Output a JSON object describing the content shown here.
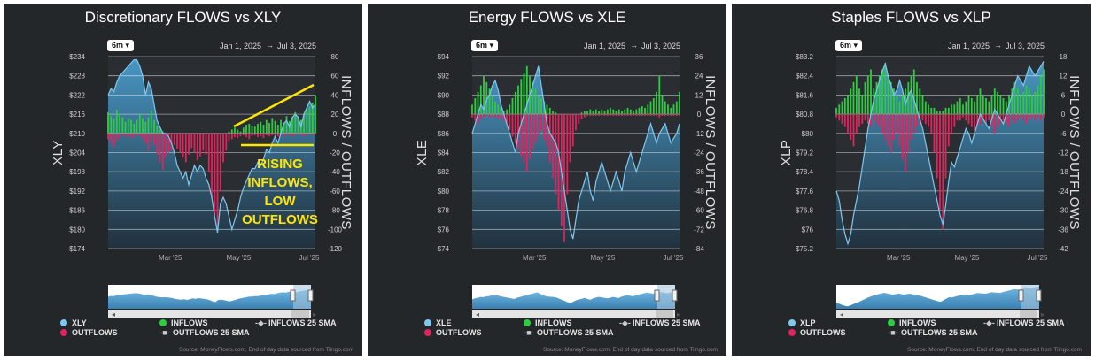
{
  "panels": [
    {
      "title": "Discretionary FLOWS vs XLY",
      "range_label": "6m",
      "date_start": "Jan 1, 2025",
      "date_sep": "→",
      "date_end": "Jul 3, 2025",
      "legend": {
        "price": "XLY",
        "inflows": "INFLOWS",
        "outflows": "OUTFLOWS",
        "inflows_sma": "INFLOWS 25 SMA",
        "outflows_sma": "OUTFLOWS 25 SMA"
      },
      "source": "Source: MoneyFlows.com, End of day data sourced from Tiingo.com"
    },
    {
      "title": "Energy FLOWS vs XLE",
      "range_label": "6m",
      "date_start": "Jan 1, 2025",
      "date_sep": "→",
      "date_end": "Jul 3, 2025",
      "legend": {
        "price": "XLE",
        "inflows": "INFLOWS",
        "outflows": "OUTFLOWS",
        "inflows_sma": "INFLOWS 25 SMA",
        "outflows_sma": "OUTFLOWS 25 SMA"
      },
      "source": "Source: MoneyFlows.com, End of day data sourced from Tiingo.com"
    },
    {
      "title": "Staples FLOWS vs XLP",
      "range_label": "6m",
      "date_start": "Jan 1, 2025",
      "date_sep": "→",
      "date_end": "Jul 3, 2025",
      "legend": {
        "price": "XLP",
        "inflows": "INFLOWS",
        "outflows": "OUTFLOWS",
        "inflows_sma": "INFLOWS 25 SMA",
        "outflows_sma": "OUTFLOWS 25 SMA"
      },
      "source": "Source: MoneyFlows.com, End of day data sourced from Tiingo.com"
    }
  ],
  "colors": {
    "price_line": "#7ec8f0",
    "price_fill": "#4a9ccc",
    "inflows": "#2ecc40",
    "outflows": "#e0245e",
    "grid": "#ffffff",
    "annotation": "#ffe600"
  },
  "chart_data": [
    {
      "type": "area",
      "title": "Discretionary FLOWS vs XLY",
      "ylabel": "XLY",
      "y2label": "INFLOWS / OUTFLOWS",
      "x_ticks": [
        "Mar '25",
        "May '25",
        "Jul '25"
      ],
      "y_ticks": [
        "$234",
        "$228",
        "$222",
        "$216",
        "$210",
        "$204",
        "$198",
        "$192",
        "$186",
        "$180",
        "$174"
      ],
      "y2_ticks": [
        "80",
        "60",
        "40",
        "20",
        "0",
        "-20",
        "-40",
        "-60",
        "-80",
        "-100",
        "-120"
      ],
      "ylim": [
        174,
        234
      ],
      "y2lim": [
        -120,
        80
      ],
      "price": [
        222,
        224,
        223,
        226,
        228,
        229,
        230,
        231,
        232,
        233,
        233,
        231,
        228,
        222,
        226,
        224,
        219,
        214,
        212,
        210,
        210,
        209,
        207,
        204,
        200,
        198,
        196,
        198,
        194,
        197,
        200,
        198,
        200,
        199,
        196,
        194,
        190,
        184,
        179,
        188,
        190,
        188,
        184,
        180,
        183,
        186,
        190,
        193,
        195,
        197,
        199,
        199,
        201,
        200,
        202,
        205,
        204,
        207,
        209,
        207,
        210,
        213,
        214,
        212,
        215,
        216,
        215,
        212,
        216,
        218,
        220,
        218,
        219
      ],
      "inflows": [
        22,
        18,
        15,
        25,
        20,
        17,
        12,
        16,
        14,
        10,
        14,
        20,
        16,
        12,
        17,
        24,
        14,
        8,
        4,
        2,
        0,
        0,
        0,
        0,
        0,
        0,
        0,
        0,
        0,
        0,
        0,
        0,
        0,
        0,
        0,
        0,
        0,
        0,
        0,
        0,
        0,
        0,
        2,
        4,
        6,
        4,
        2,
        6,
        9,
        10,
        8,
        7,
        10,
        12,
        9,
        14,
        11,
        16,
        13,
        9,
        14,
        11,
        18,
        13,
        16,
        22,
        18,
        14,
        20,
        24,
        28,
        32,
        40
      ],
      "outflows": [
        -6,
        -10,
        -14,
        -8,
        -5,
        -2,
        -4,
        -3,
        -5,
        -4,
        -2,
        -3,
        -6,
        -10,
        -18,
        -8,
        -12,
        -22,
        -30,
        -38,
        -25,
        -20,
        -18,
        -12,
        -16,
        -20,
        -25,
        -30,
        -22,
        -15,
        -20,
        -28,
        -24,
        -18,
        -22,
        -40,
        -68,
        -85,
        -98,
        -60,
        -30,
        -18,
        -8,
        -6,
        -4,
        -5,
        -3,
        -2,
        -4,
        -6,
        -3,
        -2,
        -4,
        -3,
        -5,
        -2,
        -3,
        -2,
        -4,
        -3,
        -2,
        -3,
        -2,
        -2,
        -3,
        -2,
        -1,
        -2,
        -3,
        -2,
        -1,
        -2,
        -1
      ],
      "annotations": [
        "RISING",
        "INFLOWS,",
        "LOW",
        "OUTFLOWS"
      ]
    },
    {
      "type": "area",
      "title": "Energy FLOWS vs XLE",
      "ylabel": "XLE",
      "y2label": "INFLOWS / OUTFLOWS",
      "x_ticks": [
        "Mar '25",
        "May '25",
        "Jul '25"
      ],
      "y_ticks": [
        "$94",
        "$92",
        "$90",
        "$88",
        "$86",
        "$84",
        "$82",
        "$80",
        "$78",
        "$76",
        "$74"
      ],
      "y2_ticks": [
        "36",
        "24",
        "12",
        "0",
        "-12",
        "-24",
        "-36",
        "-48",
        "-60",
        "-72",
        "-84"
      ],
      "ylim": [
        74,
        94
      ],
      "y2lim": [
        -84,
        36
      ],
      "price": [
        86,
        87,
        88,
        89,
        88.5,
        89.5,
        90,
        91,
        91.5,
        90.5,
        89,
        88,
        87,
        86,
        85,
        84,
        86,
        87,
        88,
        89,
        90,
        91,
        92,
        93,
        91,
        89,
        87,
        86,
        85.5,
        85,
        84,
        82,
        80,
        78,
        76,
        75,
        77,
        79,
        80,
        81,
        82,
        80,
        79,
        81,
        82,
        83,
        82,
        81,
        80,
        81,
        82,
        81,
        80,
        82,
        83,
        84,
        83,
        82,
        83,
        84,
        85,
        86,
        87,
        86,
        85,
        86,
        86.5,
        87,
        86,
        85,
        85.5,
        86,
        87
      ],
      "inflows": [
        6,
        10,
        14,
        18,
        24,
        20,
        16,
        12,
        8,
        6,
        4,
        2,
        3,
        6,
        10,
        14,
        18,
        22,
        26,
        30,
        24,
        20,
        16,
        12,
        10,
        8,
        6,
        4,
        2,
        1,
        0,
        0,
        0,
        0,
        0,
        0,
        0,
        0,
        1,
        2,
        2,
        3,
        2,
        3,
        2,
        3,
        2,
        3,
        4,
        3,
        2,
        3,
        2,
        3,
        4,
        3,
        2,
        3,
        4,
        5,
        4,
        6,
        8,
        10,
        14,
        24,
        12,
        8,
        6,
        4,
        6,
        8,
        14
      ],
      "outflows": [
        -2,
        -4,
        -6,
        -3,
        -2,
        -1,
        -2,
        -1,
        -2,
        -3,
        -2,
        -4,
        -6,
        -10,
        -14,
        -18,
        -22,
        -26,
        -30,
        -36,
        -28,
        -22,
        -18,
        -14,
        -10,
        -16,
        -20,
        -30,
        -40,
        -50,
        -60,
        -70,
        -80,
        -50,
        -30,
        -20,
        -10,
        -6,
        -3,
        -2,
        -1,
        -1,
        -1,
        -1,
        -1,
        -1,
        -1,
        -1,
        -1,
        -1,
        -1,
        -1,
        -1,
        -1,
        -1,
        -1,
        -1,
        -1,
        -1,
        -1,
        -1,
        -1,
        -1,
        -1,
        -1,
        -2,
        -1,
        -1,
        -1,
        -1,
        -1,
        -1,
        -1
      ]
    },
    {
      "type": "area",
      "title": "Staples FLOWS vs XLP",
      "ylabel": "XLP",
      "y2label": "INFLOWS / OUTFLOWS",
      "x_ticks": [
        "Mar '25",
        "May '25",
        "Jul '25"
      ],
      "y_ticks": [
        "$83.2",
        "$82.4",
        "$81.6",
        "$80.8",
        "$80",
        "$79.2",
        "$78.4",
        "$77.6",
        "$76.8",
        "$76",
        "$75.2"
      ],
      "y2_ticks": [
        "18",
        "12",
        "6",
        "0",
        "-6",
        "-12",
        "-18",
        "-24",
        "-30",
        "-36",
        "-42"
      ],
      "ylim": [
        75.2,
        83.2
      ],
      "y2lim": [
        -42,
        18
      ],
      "price": [
        77.6,
        77.2,
        76.4,
        75.8,
        75.4,
        75.8,
        76.6,
        77.2,
        77.8,
        78.6,
        79.4,
        80.2,
        80.8,
        81.4,
        81.8,
        82.2,
        82.6,
        82.9,
        82.4,
        82,
        81.6,
        81.8,
        82.2,
        81.8,
        81.2,
        81.6,
        81.8,
        81.4,
        81,
        80.6,
        80.2,
        79.6,
        79,
        78.4,
        77.8,
        77.2,
        76.6,
        76.2,
        77,
        78,
        78.8,
        78.6,
        79,
        79.4,
        79.8,
        80.2,
        80,
        79.6,
        80,
        80.4,
        80.8,
        80.6,
        80.4,
        80.2,
        80.6,
        81,
        80.8,
        80.6,
        80.4,
        80.8,
        81.2,
        81.6,
        82,
        82.4,
        82.2,
        82,
        82.4,
        82.8,
        82.6,
        82.4,
        82.6,
        82.8,
        83
      ],
      "inflows": [
        2,
        3,
        4,
        5,
        6,
        8,
        10,
        12,
        8,
        6,
        10,
        12,
        14,
        8,
        10,
        12,
        14,
        16,
        12,
        10,
        8,
        6,
        4,
        6,
        8,
        10,
        12,
        14,
        10,
        8,
        6,
        4,
        3,
        2,
        2,
        1,
        1,
        1,
        2,
        2,
        3,
        3,
        4,
        5,
        3,
        4,
        6,
        5,
        4,
        6,
        8,
        6,
        5,
        4,
        6,
        8,
        7,
        6,
        5,
        4,
        6,
        8,
        10,
        8,
        6,
        7,
        9,
        8,
        6,
        7,
        9,
        12,
        14
      ],
      "outflows": [
        -1,
        -2,
        -3,
        -4,
        -6,
        -8,
        -10,
        -6,
        -4,
        -3,
        -2,
        -3,
        -4,
        -2,
        -3,
        -4,
        -6,
        -8,
        -10,
        -12,
        -8,
        -6,
        -10,
        -14,
        -18,
        -12,
        -8,
        -6,
        -4,
        -3,
        -2,
        -3,
        -4,
        -6,
        -12,
        -20,
        -30,
        -36,
        -20,
        -10,
        -6,
        -4,
        -2,
        -2,
        -1,
        -2,
        -3,
        -4,
        -6,
        -4,
        -3,
        -2,
        -3,
        -2,
        -4,
        -6,
        -4,
        -3,
        -2,
        -3,
        -4,
        -2,
        -3,
        -2,
        -1,
        -2,
        -3,
        -2,
        -1,
        -2,
        -1,
        -2,
        -1
      ]
    }
  ]
}
